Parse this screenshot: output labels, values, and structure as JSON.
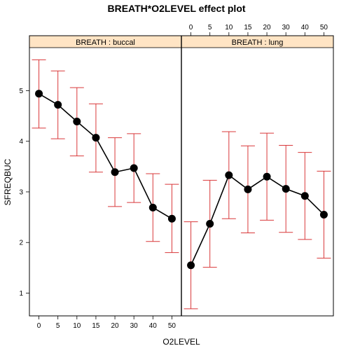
{
  "title": "BREATH*O2LEVEL effect plot",
  "chart_data": {
    "type": "line",
    "title": "BREATH*O2LEVEL effect plot",
    "xlabel": "O2LEVEL",
    "ylabel": "SFREQBUC",
    "categories": [
      "0",
      "5",
      "10",
      "15",
      "20",
      "30",
      "40",
      "50"
    ],
    "y_ticks": [
      1,
      2,
      3,
      4,
      5
    ],
    "ylim": [
      0.55,
      5.85
    ],
    "grid": false,
    "colors": {
      "line": "#000000",
      "error_bar": "#d9383a",
      "strip": "#ffe4c4"
    },
    "panels": [
      {
        "strip_label": "BREATH : buccal",
        "values": [
          4.94,
          4.72,
          4.39,
          4.07,
          3.39,
          3.47,
          2.69,
          2.47
        ],
        "lower": [
          4.26,
          4.05,
          3.71,
          3.39,
          2.71,
          2.79,
          2.02,
          1.8
        ],
        "upper": [
          5.61,
          5.39,
          5.06,
          4.74,
          4.07,
          4.15,
          3.36,
          3.15
        ]
      },
      {
        "strip_label": "BREATH : lung",
        "values": [
          1.55,
          2.37,
          3.33,
          3.05,
          3.3,
          3.06,
          2.92,
          2.55
        ],
        "lower": [
          0.69,
          1.51,
          2.47,
          2.19,
          2.44,
          2.2,
          2.06,
          1.69
        ],
        "upper": [
          2.41,
          3.23,
          4.19,
          3.91,
          4.16,
          3.92,
          3.78,
          3.41
        ]
      }
    ]
  }
}
